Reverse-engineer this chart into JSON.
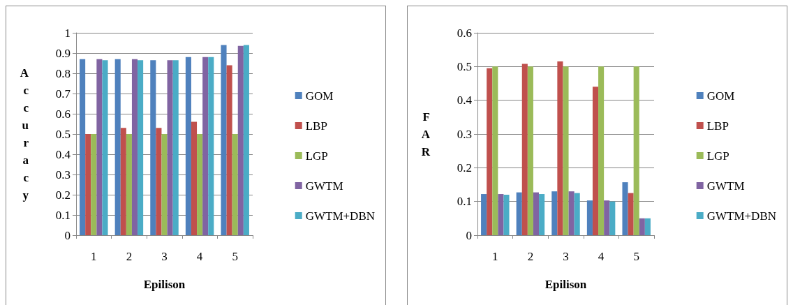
{
  "chart_data": [
    {
      "type": "bar",
      "ylabel": "Accuracy",
      "xlabel": "Epilison",
      "categories": [
        "1",
        "2",
        "3",
        "4",
        "5"
      ],
      "ylim": [
        0,
        1
      ],
      "yticks": [
        0,
        0.1,
        0.2,
        0.3,
        0.4,
        0.5,
        0.6,
        0.7,
        0.8,
        0.9,
        1
      ],
      "grid": "y",
      "legend": "right",
      "series": [
        {
          "name": "GOM",
          "color": "#4f81bd",
          "values": [
            0.87,
            0.87,
            0.865,
            0.88,
            0.94
          ]
        },
        {
          "name": "LBP",
          "color": "#c0504d",
          "values": [
            0.5,
            0.53,
            0.53,
            0.56,
            0.84
          ]
        },
        {
          "name": "LGP",
          "color": "#9bbb59",
          "values": [
            0.5,
            0.5,
            0.5,
            0.5,
            0.5
          ]
        },
        {
          "name": "GWTM",
          "color": "#8064a2",
          "values": [
            0.87,
            0.87,
            0.865,
            0.88,
            0.935
          ]
        },
        {
          "name": "GWTM+DBN",
          "color": "#4bacc6",
          "values": [
            0.865,
            0.865,
            0.865,
            0.88,
            0.94
          ]
        }
      ]
    },
    {
      "type": "bar",
      "ylabel": "FAR",
      "xlabel": "Epilison",
      "categories": [
        "1",
        "2",
        "3",
        "4",
        "5"
      ],
      "ylim": [
        0,
        0.6
      ],
      "yticks": [
        0,
        0.1,
        0.2,
        0.3,
        0.4,
        0.5,
        0.6
      ],
      "grid": "y",
      "legend": "right",
      "series": [
        {
          "name": "GOM",
          "color": "#4f81bd",
          "values": [
            0.122,
            0.127,
            0.13,
            0.103,
            0.157
          ]
        },
        {
          "name": "LBP",
          "color": "#c0504d",
          "values": [
            0.495,
            0.508,
            0.515,
            0.44,
            0.125
          ]
        },
        {
          "name": "LGP",
          "color": "#9bbb59",
          "values": [
            0.5,
            0.5,
            0.5,
            0.5,
            0.5
          ]
        },
        {
          "name": "GWTM",
          "color": "#8064a2",
          "values": [
            0.122,
            0.127,
            0.13,
            0.103,
            0.05
          ]
        },
        {
          "name": "GWTM+DBN",
          "color": "#4bacc6",
          "values": [
            0.12,
            0.122,
            0.125,
            0.1,
            0.05
          ]
        }
      ]
    }
  ]
}
